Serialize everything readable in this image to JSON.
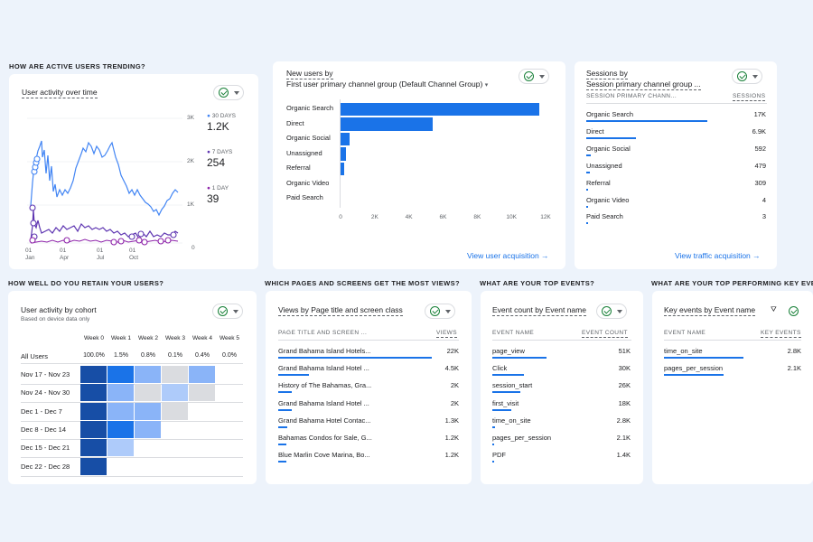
{
  "sections": {
    "active_users": "HOW ARE ACTIVE USERS TRENDING?",
    "retention": "HOW WELL DO YOU RETAIN YOUR USERS?",
    "pages": "WHICH PAGES AND SCREENS GET THE MOST VIEWS?",
    "events": "WHAT ARE YOUR TOP EVENTS?",
    "key_events": "WHAT ARE YOUR TOP PERFORMING KEY EVENTS?"
  },
  "user_activity": {
    "title": "User activity over time",
    "y_ticks": [
      "3K",
      "2K",
      "1K",
      "0"
    ],
    "x_ticks": [
      {
        "day": "01",
        "month": "Jan"
      },
      {
        "day": "01",
        "month": "Apr"
      },
      {
        "day": "01",
        "month": "Jul"
      },
      {
        "day": "01",
        "month": "Oct"
      }
    ],
    "legend": [
      {
        "label": "30 DAYS",
        "value": "1.2K",
        "color": "#4285f4"
      },
      {
        "label": "7 DAYS",
        "value": "254",
        "color": "#5e35b1"
      },
      {
        "label": "1 DAY",
        "value": "39",
        "color": "#8e24aa"
      }
    ]
  },
  "new_users": {
    "title_line1": "New users by",
    "title_line2": "First user primary channel group (Default Channel Group)",
    "x_ticks": [
      "0",
      "2K",
      "4K",
      "6K",
      "8K",
      "10K",
      "12K"
    ],
    "link": "View user acquisition →",
    "chart_data": {
      "type": "bar",
      "orientation": "horizontal",
      "categories": [
        "Organic Search",
        "Direct",
        "Organic Social",
        "Unassigned",
        "Referral",
        "Organic Video",
        "Paid Search"
      ],
      "values": [
        11700,
        5450,
        560,
        390,
        280,
        5,
        3
      ],
      "xlim": [
        0,
        12000
      ]
    }
  },
  "sessions": {
    "title_line1": "Sessions by",
    "title_line2": "Session primary channel group ...",
    "col1": "SESSION PRIMARY CHANN...",
    "col2": "SESSIONS",
    "link": "View traffic acquisition →",
    "rows": [
      {
        "label": "Organic Search",
        "value": "17K",
        "frac": 1.0
      },
      {
        "label": "Direct",
        "value": "6.9K",
        "frac": 0.41
      },
      {
        "label": "Organic Social",
        "value": "592",
        "frac": 0.035
      },
      {
        "label": "Unassigned",
        "value": "479",
        "frac": 0.028
      },
      {
        "label": "Referral",
        "value": "309",
        "frac": 0.018
      },
      {
        "label": "Organic Video",
        "value": "4",
        "frac": 0.0
      },
      {
        "label": "Paid Search",
        "value": "3",
        "frac": 0.0
      }
    ]
  },
  "cohort": {
    "title": "User activity by cohort",
    "subtitle": "Based on device data only",
    "weeks": [
      "Week 0",
      "Week 1",
      "Week 2",
      "Week 3",
      "Week 4",
      "Week 5"
    ],
    "all_users": {
      "label": "All Users",
      "values": [
        "100.0%",
        "1.5%",
        "0.8%",
        "0.1%",
        "0.4%",
        "0.0%"
      ]
    },
    "rows": [
      {
        "label": "Nov 17 - Nov 23",
        "cells": [
          1.0,
          0.8,
          0.45,
          0.15,
          0.45
        ]
      },
      {
        "label": "Nov 24 - Nov 30",
        "cells": [
          1.0,
          0.4,
          0.15,
          0.3,
          0.15
        ]
      },
      {
        "label": "Dec 1 - Dec 7",
        "cells": [
          1.0,
          0.45,
          0.45,
          0.15
        ]
      },
      {
        "label": "Dec 8 - Dec 14",
        "cells": [
          1.0,
          0.8,
          0.45
        ]
      },
      {
        "label": "Dec 15 - Dec 21",
        "cells": [
          1.0,
          0.35
        ]
      },
      {
        "label": "Dec 22 - Dec 28",
        "cells": [
          1.0
        ]
      }
    ]
  },
  "views": {
    "title": "Views by Page title and screen class",
    "col1": "PAGE TITLE AND SCREEN ...",
    "col2": "VIEWS",
    "rows": [
      {
        "label": "Grand Bahama Island Hotels...",
        "value": "22K",
        "frac": 1.0
      },
      {
        "label": "Grand Bahama Island Hotel ...",
        "value": "4.5K",
        "frac": 0.2
      },
      {
        "label": "History of The Bahamas, Gra...",
        "value": "2K",
        "frac": 0.09
      },
      {
        "label": "Grand Bahama Island Hotel ...",
        "value": "2K",
        "frac": 0.09
      },
      {
        "label": "Grand Bahama Hotel Contac...",
        "value": "1.3K",
        "frac": 0.06
      },
      {
        "label": "Bahamas Condos for Sale, G...",
        "value": "1.2K",
        "frac": 0.055
      },
      {
        "label": "Blue Marlin Cove Marina, Bo...",
        "value": "1.2K",
        "frac": 0.055
      }
    ]
  },
  "event_count": {
    "title": "Event count by Event name",
    "col1": "EVENT NAME",
    "col2": "EVENT COUNT",
    "rows": [
      {
        "label": "page_view",
        "value": "51K",
        "frac": 1.0
      },
      {
        "label": "Click",
        "value": "30K",
        "frac": 0.59
      },
      {
        "label": "session_start",
        "value": "26K",
        "frac": 0.51
      },
      {
        "label": "first_visit",
        "value": "18K",
        "frac": 0.35
      },
      {
        "label": "time_on_site",
        "value": "2.8K",
        "frac": 0.055
      },
      {
        "label": "pages_per_session",
        "value": "2.1K",
        "frac": 0.04
      },
      {
        "label": "PDF",
        "value": "1.4K",
        "frac": 0.03
      }
    ]
  },
  "key_events": {
    "title": "Key events by Event name",
    "col1": "EVENT NAME",
    "col2": "KEY EVENTS",
    "rows": [
      {
        "label": "time_on_site",
        "value": "2.8K",
        "frac": 1.0
      },
      {
        "label": "pages_per_session",
        "value": "2.1K",
        "frac": 0.75
      }
    ]
  }
}
